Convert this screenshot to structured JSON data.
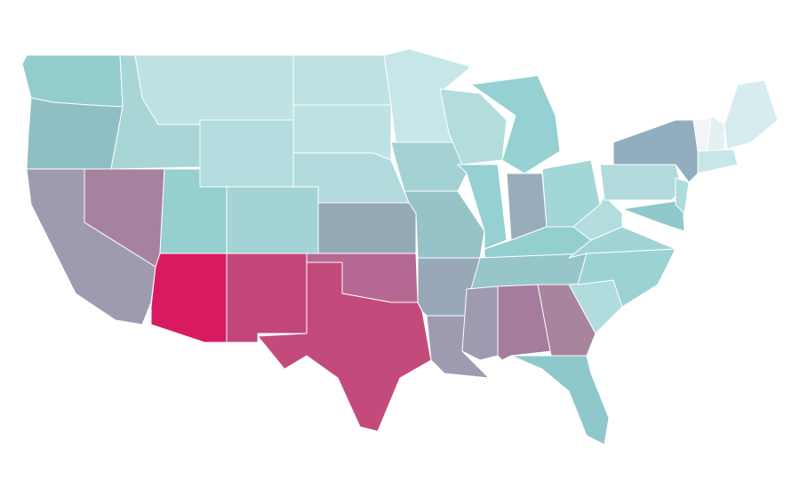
{
  "map": {
    "regions": [
      {
        "color": "#92cccc"
      },
      {
        "color": "#8fbfc4"
      },
      {
        "color": "#9e9ab0"
      },
      {
        "color": "#a7829f"
      },
      {
        "color": "#a8d6d7"
      },
      {
        "color": "#bfe2e2"
      },
      {
        "color": "#b2dcdd"
      },
      {
        "color": "#95cfcf"
      },
      {
        "color": "#d81b60"
      },
      {
        "color": "#a3d3d4"
      },
      {
        "color": "#c3467a"
      },
      {
        "color": "#bee1e2"
      },
      {
        "color": "#bfe2e2"
      },
      {
        "color": "#b2dadc"
      },
      {
        "color": "#93a9b6"
      },
      {
        "color": "#b56891"
      },
      {
        "color": "#c34b7b"
      },
      {
        "color": "#c7e6e8"
      },
      {
        "color": "#a4d2d4"
      },
      {
        "color": "#95c3c6"
      },
      {
        "color": "#98a8b8"
      },
      {
        "color": "#9e9ab0"
      },
      {
        "color": "#b3dcdd"
      },
      {
        "color": "#95d0d2"
      },
      {
        "color": "#95d0d2"
      },
      {
        "color": "#98adbb"
      },
      {
        "color": "#a3d6d6"
      },
      {
        "color": "#94cfd0"
      },
      {
        "color": "#96c6ca"
      },
      {
        "color": "#9e9ab0"
      },
      {
        "color": "#a67c9e"
      },
      {
        "color": "#a8849d"
      },
      {
        "color": "#8ec8ca"
      },
      {
        "color": "#b1dcdd"
      },
      {
        "color": "#9dd2d3"
      },
      {
        "color": "#a2d3d5"
      },
      {
        "color": "#b2dcdd"
      },
      {
        "color": "#b2dadc"
      },
      {
        "color": "#92adbd"
      },
      {
        "color": "#8fc9cc"
      },
      {
        "color": "#aedbdc"
      },
      {
        "color": "#f2f4f5"
      },
      {
        "color": "#e3f1f2"
      },
      {
        "color": "#d7ecee"
      },
      {
        "color": "#c7e6e8"
      }
    ]
  }
}
